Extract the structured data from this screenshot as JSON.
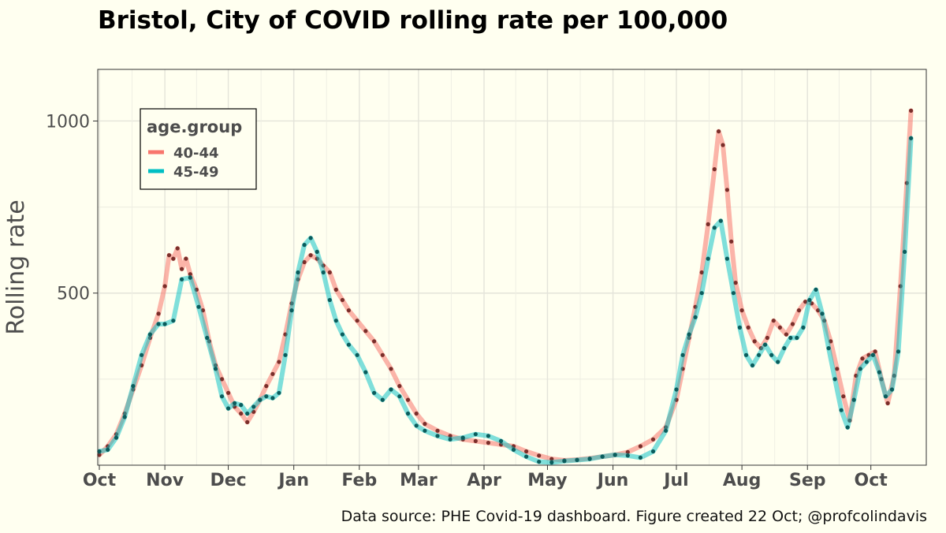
{
  "chart_data": {
    "type": "line",
    "title": "Bristol, City of  COVID rolling rate per 100,000",
    "ylabel": "Rolling rate",
    "xlabel": "",
    "x_tick_labels": [
      "Oct",
      "Nov",
      "Dec",
      "Jan",
      "Feb",
      "Mar",
      "Apr",
      "May",
      "Jun",
      "Jul",
      "Aug",
      "Sep",
      "Oct"
    ],
    "x_tick_dates": [
      "2020-10-01",
      "2020-11-01",
      "2020-12-01",
      "2021-01-01",
      "2021-02-01",
      "2021-03-01",
      "2021-04-01",
      "2021-05-01",
      "2021-06-01",
      "2021-07-01",
      "2021-08-01",
      "2021-09-01",
      "2021-10-01"
    ],
    "y_ticks": [
      500,
      1000
    ],
    "ylim": [
      0,
      1150
    ],
    "xlim": [
      "2020-10-01",
      "2021-10-22"
    ],
    "grid": true,
    "legend": {
      "title": "age.group",
      "position": "top-left"
    },
    "series": [
      {
        "name": "40-44",
        "color": "#f8766d",
        "point_color": "#7a2e2a",
        "points": [
          [
            "2020-10-01",
            30
          ],
          [
            "2020-10-05",
            55
          ],
          [
            "2020-10-09",
            90
          ],
          [
            "2020-10-13",
            150
          ],
          [
            "2020-10-17",
            220
          ],
          [
            "2020-10-21",
            290
          ],
          [
            "2020-10-25",
            370
          ],
          [
            "2020-10-29",
            440
          ],
          [
            "2020-11-01",
            520
          ],
          [
            "2020-11-03",
            610
          ],
          [
            "2020-11-05",
            600
          ],
          [
            "2020-11-07",
            630
          ],
          [
            "2020-11-09",
            570
          ],
          [
            "2020-11-11",
            600
          ],
          [
            "2020-11-13",
            555
          ],
          [
            "2020-11-16",
            510
          ],
          [
            "2020-11-19",
            450
          ],
          [
            "2020-11-22",
            360
          ],
          [
            "2020-11-25",
            290
          ],
          [
            "2020-11-28",
            250
          ],
          [
            "2020-12-01",
            210
          ],
          [
            "2020-12-04",
            170
          ],
          [
            "2020-12-07",
            150
          ],
          [
            "2020-12-10",
            125
          ],
          [
            "2020-12-13",
            155
          ],
          [
            "2020-12-16",
            190
          ],
          [
            "2020-12-19",
            230
          ],
          [
            "2020-12-22",
            265
          ],
          [
            "2020-12-25",
            300
          ],
          [
            "2020-12-28",
            380
          ],
          [
            "2020-12-31",
            470
          ],
          [
            "2021-01-03",
            540
          ],
          [
            "2021-01-06",
            590
          ],
          [
            "2021-01-09",
            610
          ],
          [
            "2021-01-12",
            600
          ],
          [
            "2021-01-15",
            580
          ],
          [
            "2021-01-18",
            560
          ],
          [
            "2021-01-21",
            510
          ],
          [
            "2021-01-24",
            480
          ],
          [
            "2021-01-27",
            450
          ],
          [
            "2021-01-31",
            420
          ],
          [
            "2021-02-04",
            390
          ],
          [
            "2021-02-08",
            360
          ],
          [
            "2021-02-12",
            320
          ],
          [
            "2021-02-16",
            280
          ],
          [
            "2021-02-20",
            230
          ],
          [
            "2021-02-24",
            190
          ],
          [
            "2021-02-28",
            150
          ],
          [
            "2021-03-04",
            120
          ],
          [
            "2021-03-10",
            100
          ],
          [
            "2021-03-16",
            85
          ],
          [
            "2021-03-22",
            75
          ],
          [
            "2021-03-28",
            70
          ],
          [
            "2021-04-03",
            65
          ],
          [
            "2021-04-09",
            60
          ],
          [
            "2021-04-15",
            55
          ],
          [
            "2021-04-21",
            40
          ],
          [
            "2021-04-27",
            28
          ],
          [
            "2021-05-03",
            18
          ],
          [
            "2021-05-09",
            14
          ],
          [
            "2021-05-15",
            16
          ],
          [
            "2021-05-21",
            20
          ],
          [
            "2021-05-27",
            25
          ],
          [
            "2021-06-02",
            30
          ],
          [
            "2021-06-08",
            38
          ],
          [
            "2021-06-14",
            55
          ],
          [
            "2021-06-20",
            75
          ],
          [
            "2021-06-26",
            110
          ],
          [
            "2021-07-01",
            190
          ],
          [
            "2021-07-04",
            280
          ],
          [
            "2021-07-07",
            370
          ],
          [
            "2021-07-10",
            460
          ],
          [
            "2021-07-13",
            560
          ],
          [
            "2021-07-16",
            700
          ],
          [
            "2021-07-19",
            860
          ],
          [
            "2021-07-21",
            970
          ],
          [
            "2021-07-23",
            930
          ],
          [
            "2021-07-25",
            800
          ],
          [
            "2021-07-27",
            650
          ],
          [
            "2021-07-29",
            530
          ],
          [
            "2021-08-01",
            450
          ],
          [
            "2021-08-04",
            400
          ],
          [
            "2021-08-07",
            360
          ],
          [
            "2021-08-10",
            340
          ],
          [
            "2021-08-13",
            370
          ],
          [
            "2021-08-16",
            420
          ],
          [
            "2021-08-19",
            400
          ],
          [
            "2021-08-22",
            380
          ],
          [
            "2021-08-25",
            410
          ],
          [
            "2021-08-28",
            450
          ],
          [
            "2021-08-31",
            475
          ],
          [
            "2021-09-03",
            470
          ],
          [
            "2021-09-06",
            450
          ],
          [
            "2021-09-09",
            420
          ],
          [
            "2021-09-12",
            360
          ],
          [
            "2021-09-15",
            280
          ],
          [
            "2021-09-18",
            200
          ],
          [
            "2021-09-21",
            130
          ],
          [
            "2021-09-24",
            260
          ],
          [
            "2021-09-27",
            310
          ],
          [
            "2021-09-30",
            320
          ],
          [
            "2021-10-03",
            330
          ],
          [
            "2021-10-06",
            250
          ],
          [
            "2021-10-09",
            180
          ],
          [
            "2021-10-12",
            260
          ],
          [
            "2021-10-15",
            520
          ],
          [
            "2021-10-18",
            820
          ],
          [
            "2021-10-20",
            1030
          ]
        ]
      },
      {
        "name": "45-49",
        "color": "#00bfc4",
        "point_color": "#0a5c5c",
        "points": [
          [
            "2020-10-01",
            40
          ],
          [
            "2020-10-05",
            45
          ],
          [
            "2020-10-09",
            80
          ],
          [
            "2020-10-13",
            140
          ],
          [
            "2020-10-17",
            230
          ],
          [
            "2020-10-21",
            320
          ],
          [
            "2020-10-25",
            380
          ],
          [
            "2020-10-29",
            410
          ],
          [
            "2020-11-01",
            410
          ],
          [
            "2020-11-05",
            420
          ],
          [
            "2020-11-09",
            540
          ],
          [
            "2020-11-13",
            545
          ],
          [
            "2020-11-17",
            460
          ],
          [
            "2020-11-21",
            370
          ],
          [
            "2020-11-25",
            280
          ],
          [
            "2020-11-28",
            200
          ],
          [
            "2020-12-01",
            165
          ],
          [
            "2020-12-04",
            180
          ],
          [
            "2020-12-07",
            175
          ],
          [
            "2020-12-10",
            150
          ],
          [
            "2020-12-13",
            170
          ],
          [
            "2020-12-16",
            190
          ],
          [
            "2020-12-19",
            200
          ],
          [
            "2020-12-22",
            195
          ],
          [
            "2020-12-25",
            210
          ],
          [
            "2020-12-28",
            320
          ],
          [
            "2020-12-31",
            450
          ],
          [
            "2021-01-03",
            560
          ],
          [
            "2021-01-06",
            640
          ],
          [
            "2021-01-09",
            660
          ],
          [
            "2021-01-12",
            620
          ],
          [
            "2021-01-15",
            560
          ],
          [
            "2021-01-18",
            480
          ],
          [
            "2021-01-21",
            420
          ],
          [
            "2021-01-24",
            380
          ],
          [
            "2021-01-27",
            350
          ],
          [
            "2021-01-31",
            320
          ],
          [
            "2021-02-04",
            270
          ],
          [
            "2021-02-08",
            210
          ],
          [
            "2021-02-12",
            190
          ],
          [
            "2021-02-16",
            220
          ],
          [
            "2021-02-20",
            200
          ],
          [
            "2021-02-24",
            150
          ],
          [
            "2021-02-28",
            115
          ],
          [
            "2021-03-04",
            100
          ],
          [
            "2021-03-10",
            85
          ],
          [
            "2021-03-16",
            75
          ],
          [
            "2021-03-22",
            80
          ],
          [
            "2021-03-28",
            90
          ],
          [
            "2021-04-03",
            85
          ],
          [
            "2021-04-09",
            70
          ],
          [
            "2021-04-15",
            45
          ],
          [
            "2021-04-21",
            25
          ],
          [
            "2021-04-27",
            10
          ],
          [
            "2021-05-03",
            8
          ],
          [
            "2021-05-09",
            12
          ],
          [
            "2021-05-15",
            15
          ],
          [
            "2021-05-21",
            18
          ],
          [
            "2021-05-27",
            25
          ],
          [
            "2021-06-02",
            30
          ],
          [
            "2021-06-08",
            28
          ],
          [
            "2021-06-14",
            22
          ],
          [
            "2021-06-20",
            40
          ],
          [
            "2021-06-26",
            100
          ],
          [
            "2021-07-01",
            220
          ],
          [
            "2021-07-04",
            320
          ],
          [
            "2021-07-07",
            380
          ],
          [
            "2021-07-10",
            430
          ],
          [
            "2021-07-13",
            500
          ],
          [
            "2021-07-16",
            600
          ],
          [
            "2021-07-19",
            690
          ],
          [
            "2021-07-22",
            710
          ],
          [
            "2021-07-25",
            600
          ],
          [
            "2021-07-28",
            500
          ],
          [
            "2021-07-31",
            400
          ],
          [
            "2021-08-03",
            320
          ],
          [
            "2021-08-06",
            290
          ],
          [
            "2021-08-09",
            320
          ],
          [
            "2021-08-12",
            350
          ],
          [
            "2021-08-15",
            320
          ],
          [
            "2021-08-18",
            300
          ],
          [
            "2021-08-21",
            340
          ],
          [
            "2021-08-24",
            370
          ],
          [
            "2021-08-27",
            370
          ],
          [
            "2021-08-30",
            400
          ],
          [
            "2021-09-02",
            480
          ],
          [
            "2021-09-05",
            510
          ],
          [
            "2021-09-08",
            440
          ],
          [
            "2021-09-11",
            340
          ],
          [
            "2021-09-14",
            250
          ],
          [
            "2021-09-17",
            160
          ],
          [
            "2021-09-20",
            110
          ],
          [
            "2021-09-23",
            190
          ],
          [
            "2021-09-26",
            280
          ],
          [
            "2021-09-29",
            300
          ],
          [
            "2021-10-02",
            320
          ],
          [
            "2021-10-05",
            270
          ],
          [
            "2021-10-08",
            200
          ],
          [
            "2021-10-11",
            220
          ],
          [
            "2021-10-14",
            330
          ],
          [
            "2021-10-17",
            620
          ],
          [
            "2021-10-20",
            950
          ]
        ]
      }
    ]
  },
  "caption": "Data source: PHE Covid-19 dashboard. Figure created 22 Oct; @profcolindavis"
}
